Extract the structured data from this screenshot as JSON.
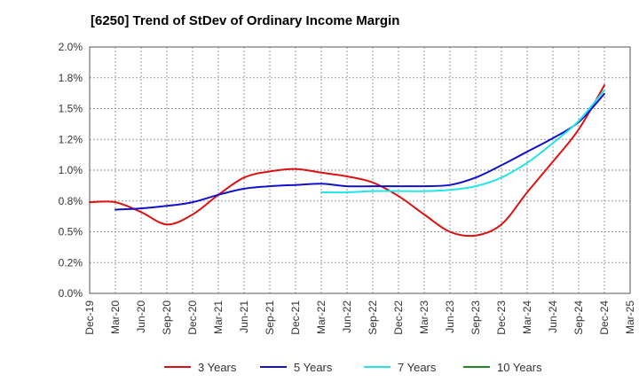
{
  "chart_data": {
    "type": "line",
    "title": "[6250]  Trend of StDev of Ordinary Income Margin",
    "xlabel": "",
    "ylabel": "",
    "ylim": [
      0,
      2.0
    ],
    "y_ticks": [
      "0.0%",
      "0.2%",
      "0.5%",
      "0.8%",
      "1.0%",
      "1.2%",
      "1.5%",
      "1.8%",
      "2.0%"
    ],
    "x_ticks": [
      "Dec-19",
      "Mar-20",
      "Jun-20",
      "Sep-20",
      "Dec-20",
      "Mar-21",
      "Jun-21",
      "Sep-21",
      "Dec-21",
      "Mar-22",
      "Jun-22",
      "Sep-22",
      "Dec-22",
      "Mar-23",
      "Jun-23",
      "Sep-23",
      "Dec-23",
      "Mar-24",
      "Jun-24",
      "Sep-24",
      "Dec-24",
      "Mar-25"
    ],
    "grid": true,
    "legend_position": "bottom",
    "series": [
      {
        "name": "3 Years",
        "color": "#dd1111",
        "x": [
          "Dec-19",
          "Mar-20",
          "Jun-20",
          "Sep-20",
          "Dec-20",
          "Mar-21",
          "Jun-21",
          "Sep-21",
          "Dec-21",
          "Mar-22",
          "Jun-22",
          "Sep-22",
          "Dec-22",
          "Mar-23",
          "Jun-23",
          "Sep-23",
          "Dec-23",
          "Mar-24",
          "Jun-24",
          "Sep-24",
          "Dec-24"
        ],
        "values": [
          0.74,
          0.74,
          0.66,
          0.56,
          0.64,
          0.8,
          0.94,
          0.99,
          1.01,
          0.98,
          0.95,
          0.9,
          0.79,
          0.64,
          0.5,
          0.47,
          0.56,
          0.82,
          1.07,
          1.33,
          1.69
        ]
      },
      {
        "name": "5 Years",
        "color": "#1111cc",
        "x": [
          "Mar-20",
          "Jun-20",
          "Sep-20",
          "Dec-20",
          "Mar-21",
          "Jun-21",
          "Sep-21",
          "Dec-21",
          "Mar-22",
          "Jun-22",
          "Sep-22",
          "Dec-22",
          "Mar-23",
          "Jun-23",
          "Sep-23",
          "Dec-23",
          "Mar-24",
          "Jun-24",
          "Sep-24",
          "Dec-24"
        ],
        "values": [
          0.68,
          0.69,
          0.71,
          0.74,
          0.8,
          0.85,
          0.87,
          0.88,
          0.89,
          0.87,
          0.87,
          0.87,
          0.87,
          0.88,
          0.94,
          1.04,
          1.15,
          1.26,
          1.39,
          1.62
        ]
      },
      {
        "name": "7 Years",
        "color": "#22e5e5",
        "x": [
          "Mar-22",
          "Jun-22",
          "Sep-22",
          "Dec-22",
          "Mar-23",
          "Jun-23",
          "Sep-23",
          "Dec-23",
          "Mar-24",
          "Jun-24",
          "Sep-24",
          "Dec-24"
        ],
        "values": [
          0.82,
          0.82,
          0.83,
          0.83,
          0.83,
          0.84,
          0.87,
          0.94,
          1.06,
          1.22,
          1.4,
          1.65
        ]
      },
      {
        "name": "10 Years",
        "color": "#228822",
        "x": [],
        "values": []
      }
    ]
  }
}
